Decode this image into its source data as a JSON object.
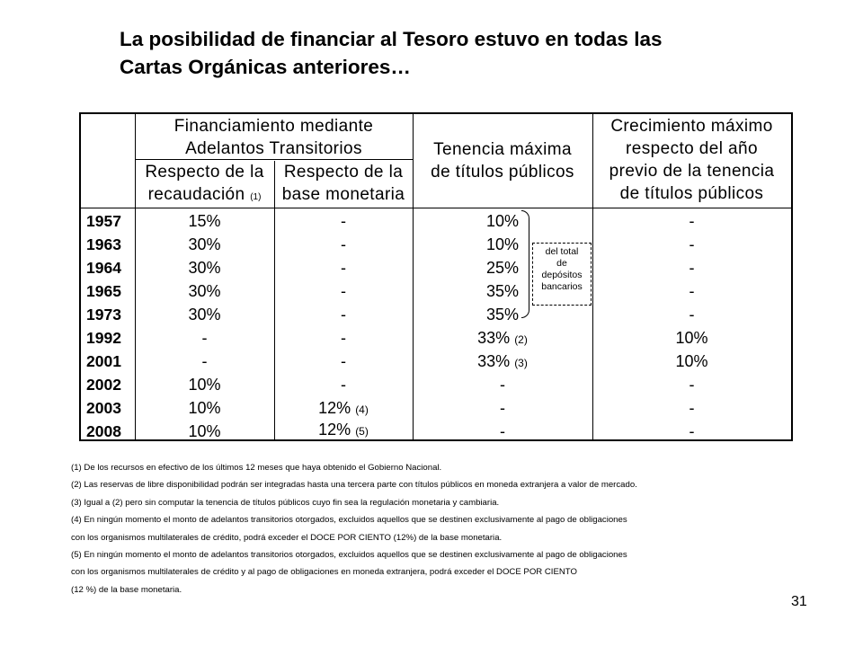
{
  "title_lines": [
    "La posibilidad de financiar al Tesoro estuvo en todas las",
    "Cartas Orgánicas anteriores…"
  ],
  "table": {
    "header": {
      "financiamiento": [
        "Financiamiento mediante",
        "Adelantos Transitorios"
      ],
      "recaudacion": [
        "Respecto de la",
        "recaudación"
      ],
      "recaudacion_note": "(1)",
      "base": [
        "Respecto de la",
        "base monetaria"
      ],
      "tenencia": [
        "Tenencia máxima",
        "de títulos públicos"
      ],
      "crecimiento": [
        "Crecimiento máximo",
        "respecto del año",
        "previo  de la tenencia",
        "de títulos públicos"
      ]
    },
    "rows": [
      {
        "year": "1957",
        "recaudacion": "15%",
        "base": "-",
        "base_note": "",
        "tenencia": "10%",
        "tenencia_note": "",
        "crecimiento": "-"
      },
      {
        "year": "1963",
        "recaudacion": "30%",
        "base": "-",
        "base_note": "",
        "tenencia": "10%",
        "tenencia_note": "",
        "crecimiento": "-"
      },
      {
        "year": "1964",
        "recaudacion": "30%",
        "base": "-",
        "base_note": "",
        "tenencia": "25%",
        "tenencia_note": "",
        "crecimiento": "-"
      },
      {
        "year": "1965",
        "recaudacion": "30%",
        "base": "-",
        "base_note": "",
        "tenencia": "35%",
        "tenencia_note": "",
        "crecimiento": "-"
      },
      {
        "year": "1973",
        "recaudacion": "30%",
        "base": "-",
        "base_note": "",
        "tenencia": "35%",
        "tenencia_note": "",
        "crecimiento": "-"
      },
      {
        "year": "1992",
        "recaudacion": "-",
        "base": "-",
        "base_note": "",
        "tenencia": "33%",
        "tenencia_note": "(2)",
        "crecimiento": "10%"
      },
      {
        "year": "2001",
        "recaudacion": "-",
        "base": "-",
        "base_note": "",
        "tenencia": "33%",
        "tenencia_note": "(3)",
        "crecimiento": "10%"
      },
      {
        "year": "2002",
        "recaudacion": "10%",
        "base": "-",
        "base_note": "",
        "tenencia": "-",
        "tenencia_note": "",
        "crecimiento": "-"
      },
      {
        "year": "2003",
        "recaudacion": "10%",
        "base": "12%",
        "base_note": "(4)",
        "tenencia": "-",
        "tenencia_note": "",
        "crecimiento": "-"
      },
      {
        "year": "2008",
        "recaudacion": "10%",
        "base": "12%",
        "base_note": "(5)",
        "tenencia": "-",
        "tenencia_note": "",
        "crecimiento": "-"
      }
    ],
    "deposit_note": [
      "del total",
      "de",
      "depósitos",
      "bancarios"
    ]
  },
  "footnotes": [
    "(1) De los recursos en efectivo de los últimos 12 meses que haya obtenido el Gobierno Nacional.",
    "(2) Las reservas de libre disponibilidad podrán ser integradas hasta una tercera parte con títulos públicos en moneda extranjera a valor de mercado.",
    "(3) Igual a (2) pero sin computar la tenencia de títulos públicos cuyo fin sea la regulación monetaria y cambiaria.",
    "(4) En ningún momento el monto de adelantos transitorios otorgados, excluidos aquellos que se destinen exclusivamente al pago de obligaciones",
    " con los organismos multilaterales de crédito, podrá exceder el DOCE POR CIENTO (12%) de la base monetaria.",
    "(5) En ningún momento el monto de adelantos transitorios otorgados, excluidos aquellos que se destinen exclusivamente al pago de obligaciones",
    "con los organismos multilaterales de crédito y al pago de obligaciones en moneda extranjera, podrá exceder el DOCE POR CIENTO",
    "(12 %) de la base monetaria."
  ],
  "page_number": "31"
}
